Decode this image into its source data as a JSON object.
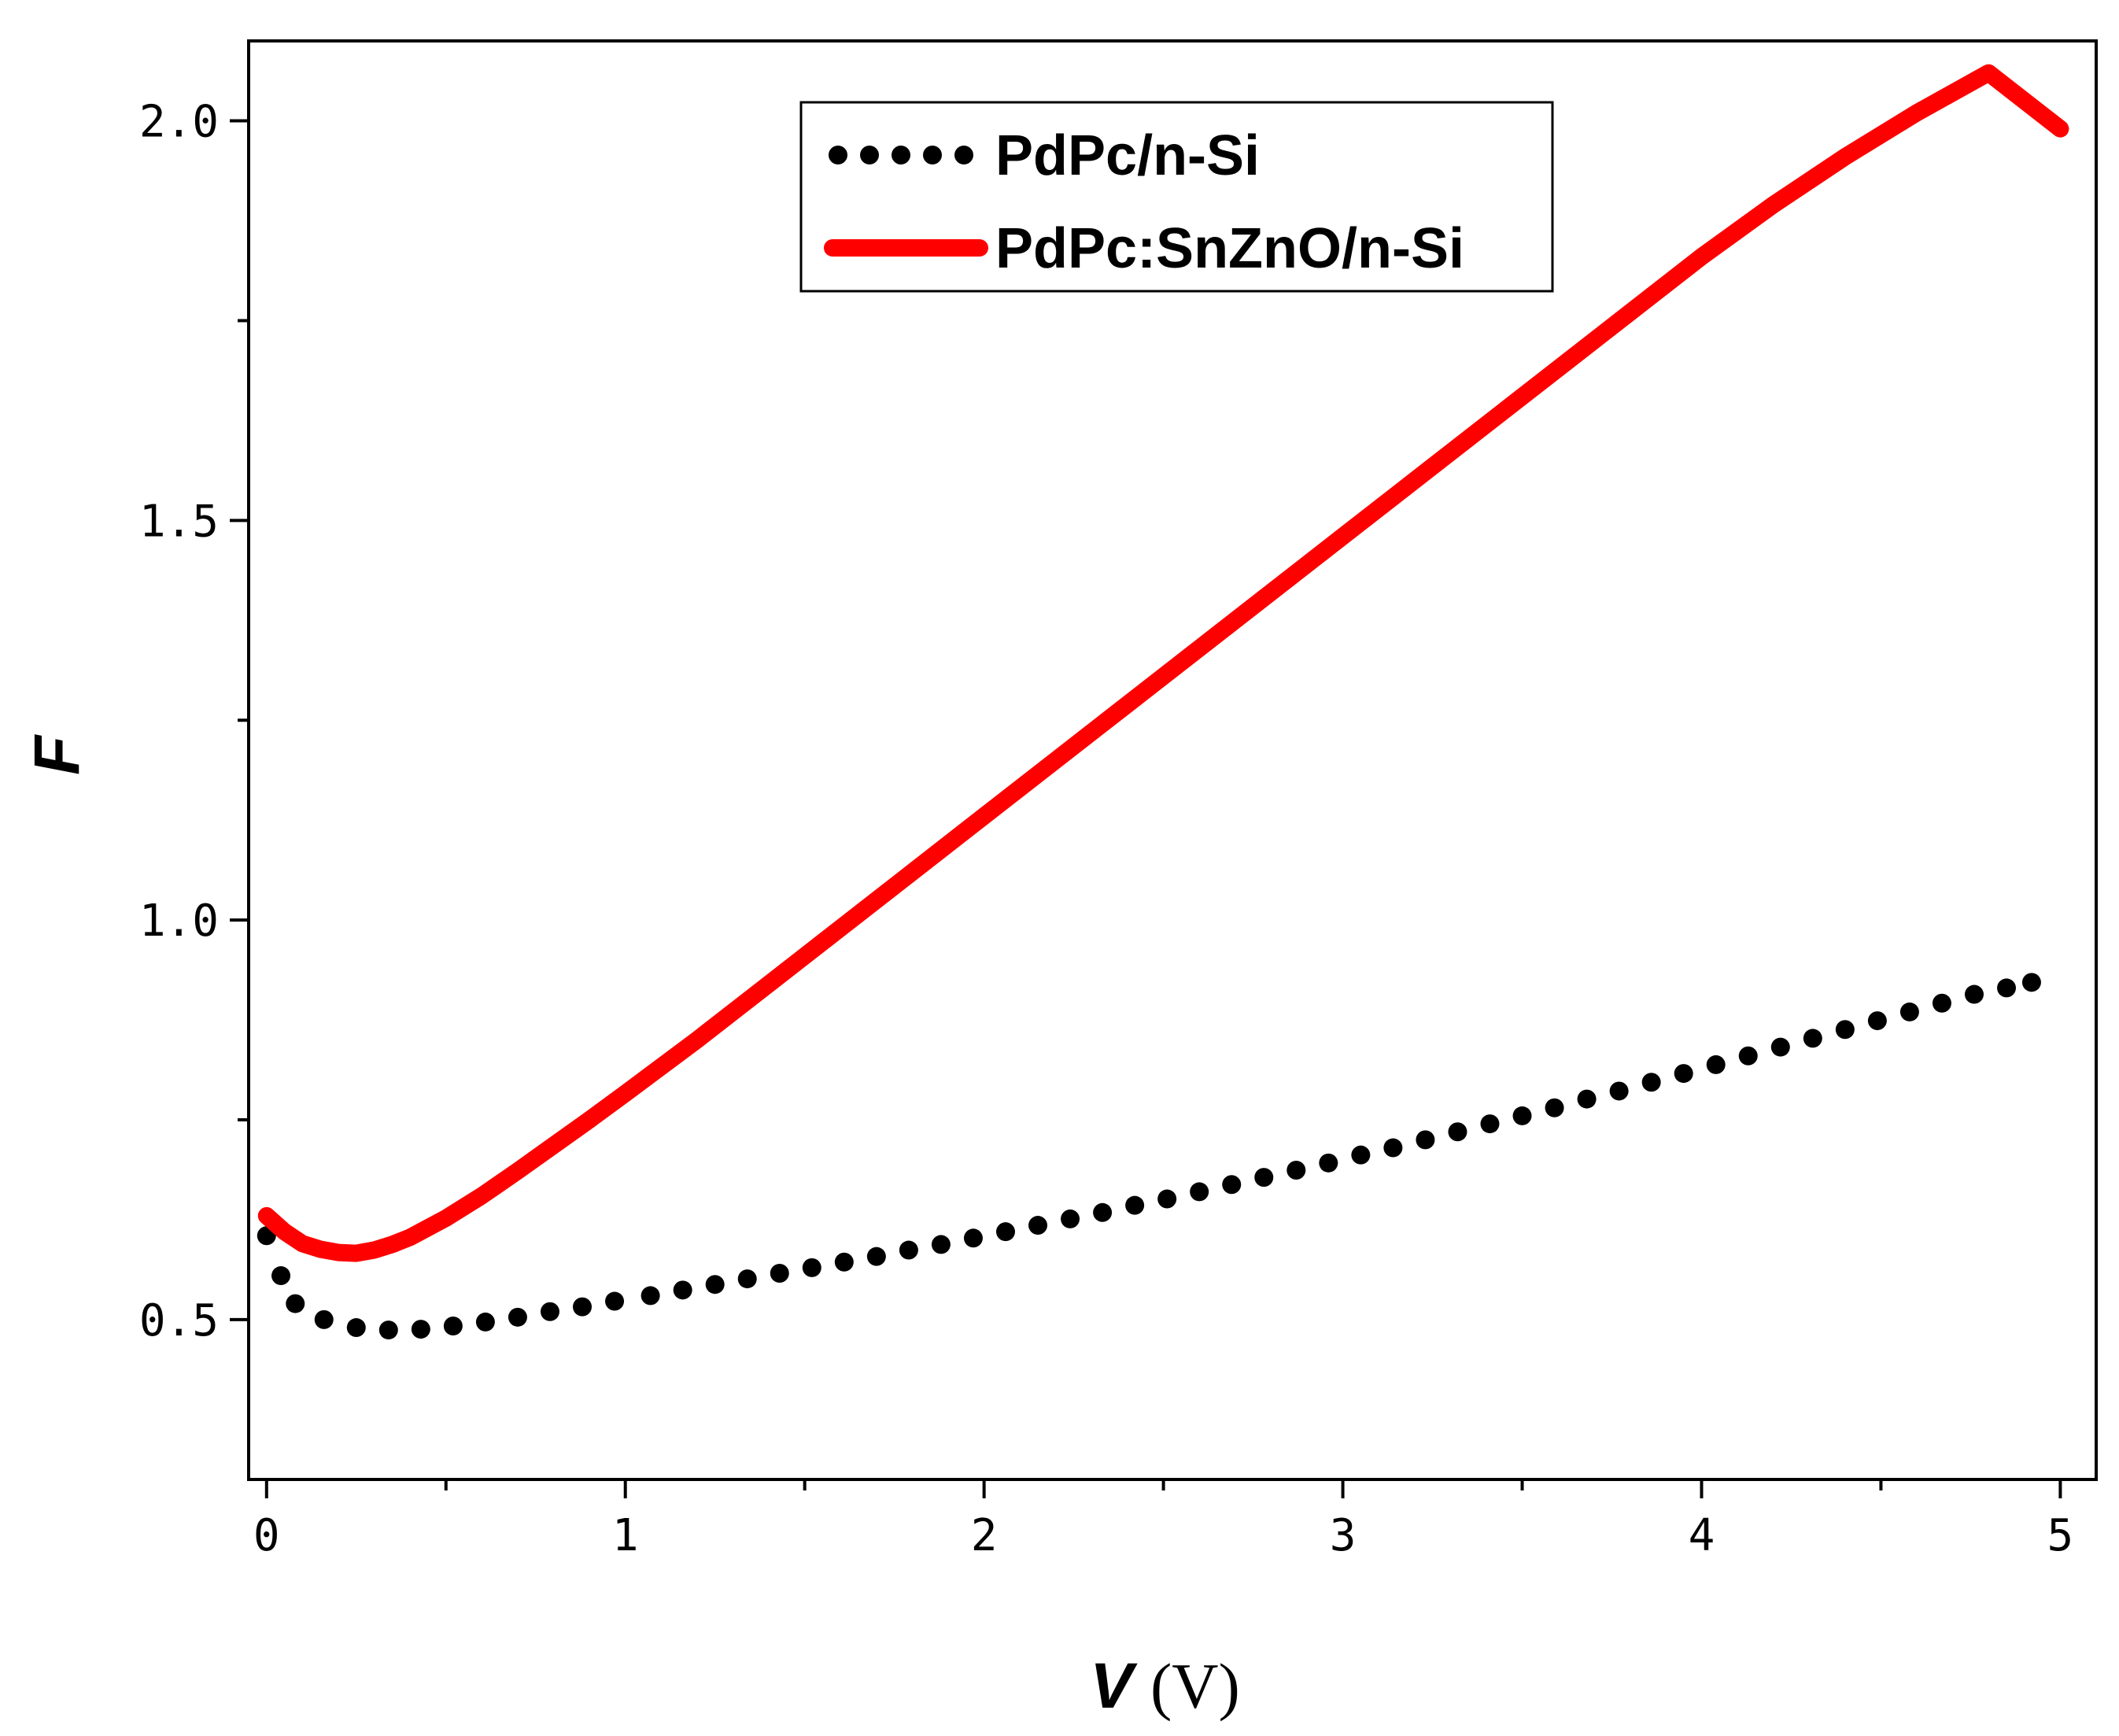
{
  "chart_data": {
    "type": "line",
    "title": "",
    "xlabel": "V",
    "xlabel_unit": "(V)",
    "ylabel": "F",
    "xlim": [
      -0.05,
      5.1
    ],
    "ylim": [
      0.3,
      2.1
    ],
    "x_ticks": [
      0,
      1,
      2,
      3,
      4,
      5
    ],
    "x_tick_labels": [
      "0",
      "1",
      "2",
      "3",
      "4",
      "5"
    ],
    "x_minor_ticks": [
      0.5,
      1.5,
      2.5,
      3.5,
      4.5
    ],
    "y_ticks": [
      0.5,
      1.0,
      1.5,
      2.0
    ],
    "y_tick_labels": [
      "0.5",
      "1.0",
      "1.5",
      "2.0"
    ],
    "y_minor_ticks": [
      0.75,
      1.25,
      1.75
    ],
    "legend_position": "top-right",
    "series": [
      {
        "name": "PdPc/n-Si",
        "style": "dotted",
        "color": "#000000",
        "x": [
          0.0,
          0.04,
          0.08,
          0.16,
          0.25,
          0.34,
          0.43,
          0.52,
          0.61,
          0.7,
          0.79,
          0.88,
          0.97,
          1.07,
          1.16,
          1.25,
          1.34,
          1.43,
          1.52,
          1.61,
          1.7,
          1.79,
          1.88,
          1.97,
          2.06,
          2.15,
          2.24,
          2.33,
          2.42,
          2.51,
          2.6,
          2.69,
          2.78,
          2.87,
          2.96,
          3.05,
          3.14,
          3.23,
          3.32,
          3.41,
          3.5,
          3.59,
          3.68,
          3.77,
          3.86,
          3.95,
          4.04,
          4.13,
          4.22,
          4.31,
          4.4,
          4.49,
          4.58,
          4.67,
          4.76,
          4.85,
          4.92
        ],
        "y": [
          0.605,
          0.555,
          0.52,
          0.5,
          0.49,
          0.487,
          0.488,
          0.492,
          0.497,
          0.503,
          0.51,
          0.516,
          0.523,
          0.53,
          0.537,
          0.544,
          0.551,
          0.558,
          0.565,
          0.572,
          0.579,
          0.587,
          0.594,
          0.602,
          0.61,
          0.618,
          0.626,
          0.634,
          0.643,
          0.651,
          0.66,
          0.669,
          0.678,
          0.687,
          0.696,
          0.706,
          0.715,
          0.725,
          0.735,
          0.745,
          0.755,
          0.765,
          0.776,
          0.786,
          0.797,
          0.808,
          0.819,
          0.83,
          0.841,
          0.852,
          0.863,
          0.874,
          0.885,
          0.896,
          0.907,
          0.915,
          0.922
        ]
      },
      {
        "name": "PdPc:SnZnO/n-Si",
        "style": "solid",
        "color": "#ff0000",
        "x": [
          0.0,
          0.05,
          0.1,
          0.15,
          0.2,
          0.25,
          0.3,
          0.35,
          0.4,
          0.5,
          0.6,
          0.7,
          0.8,
          0.9,
          1.0,
          1.2,
          1.4,
          1.6,
          1.8,
          2.0,
          2.2,
          2.4,
          2.6,
          2.8,
          3.0,
          3.2,
          3.4,
          3.6,
          3.8,
          4.0,
          4.2,
          4.4,
          4.6,
          4.8,
          5.0
        ],
        "y": [
          0.63,
          0.61,
          0.595,
          0.588,
          0.584,
          0.583,
          0.587,
          0.594,
          0.603,
          0.627,
          0.655,
          0.686,
          0.718,
          0.75,
          0.783,
          0.85,
          0.92,
          0.99,
          1.06,
          1.13,
          1.2,
          1.27,
          1.34,
          1.41,
          1.48,
          1.55,
          1.62,
          1.69,
          1.76,
          1.83,
          1.895,
          1.955,
          2.01,
          2.06,
          1.99
        ]
      }
    ]
  }
}
